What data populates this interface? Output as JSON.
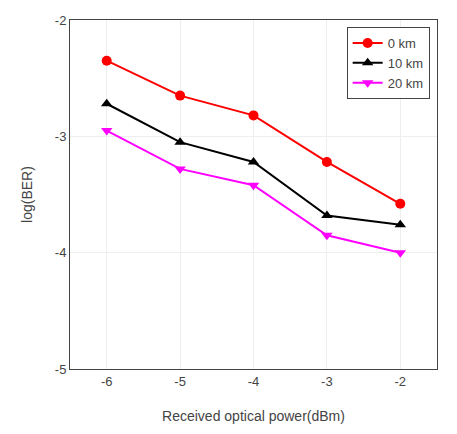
{
  "chart_data": {
    "type": "line",
    "x": [
      -6,
      -5,
      -4,
      -3,
      -2
    ],
    "series": [
      {
        "name": "0 km",
        "color": "#ff0000",
        "marker": "circle",
        "line_style": "solid",
        "values": [
          -2.35,
          -2.65,
          -2.82,
          -3.22,
          -3.58
        ]
      },
      {
        "name": "10 km",
        "color": "#000000",
        "marker": "triangle-up",
        "line_style": "solid",
        "values": [
          -2.72,
          -3.05,
          -3.22,
          -3.68,
          -3.76
        ]
      },
      {
        "name": "20 km",
        "color": "#ff00ff",
        "marker": "triangle-down",
        "line_style": "solid",
        "values": [
          -2.95,
          -3.28,
          -3.42,
          -3.85,
          -4.0
        ]
      }
    ],
    "x_label": "Received optical power(dBm)",
    "y_label": "log(BER)",
    "xlim": [
      -6.5,
      -1.5
    ],
    "ylim": [
      -5,
      -2
    ],
    "xticks": [
      -6,
      -5,
      -4,
      -3,
      -2
    ],
    "yticks": [
      -5,
      -4,
      -3,
      -2
    ],
    "grid": true,
    "legend": "upper right"
  }
}
